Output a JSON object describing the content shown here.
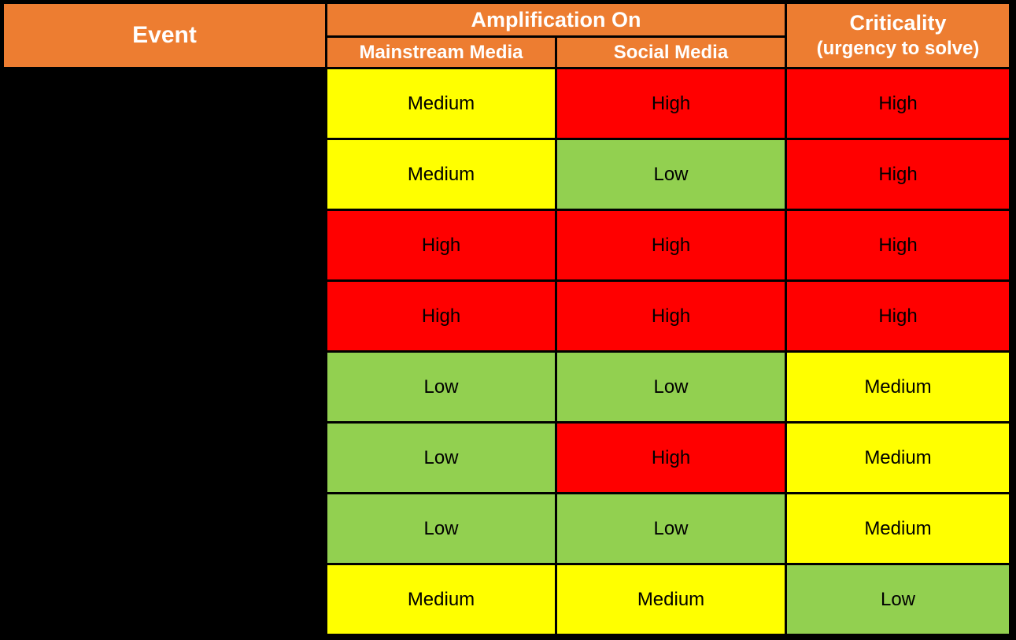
{
  "table": {
    "header": {
      "event": "Event",
      "amplification": "Amplification On",
      "mainstream": "Mainstream Media",
      "social": "Social Media",
      "criticality_line1": "Criticality",
      "criticality_line2": "(urgency to solve)"
    },
    "rows": [
      {
        "event": "",
        "mainstream": "Medium",
        "social": "High",
        "criticality": "High"
      },
      {
        "event": "",
        "mainstream": "Medium",
        "social": "Low",
        "criticality": "High"
      },
      {
        "event": "",
        "mainstream": "High",
        "social": "High",
        "criticality": "High"
      },
      {
        "event": "",
        "mainstream": "High",
        "social": "High",
        "criticality": "High"
      },
      {
        "event": "",
        "mainstream": "Low",
        "social": "Low",
        "criticality": "Medium"
      },
      {
        "event": "",
        "mainstream": "Low",
        "social": "High",
        "criticality": "Medium"
      },
      {
        "event": "",
        "mainstream": "Low",
        "social": "Low",
        "criticality": "Medium"
      },
      {
        "event": "",
        "mainstream": "Medium",
        "social": "Medium",
        "criticality": "Low"
      }
    ],
    "colors": {
      "header_bg": "#ED7D31",
      "header_text": "#FFFFFF",
      "low": "#92D050",
      "medium": "#FFFF00",
      "high": "#FF0000",
      "border": "#000000",
      "event_bg": "#000000"
    }
  }
}
